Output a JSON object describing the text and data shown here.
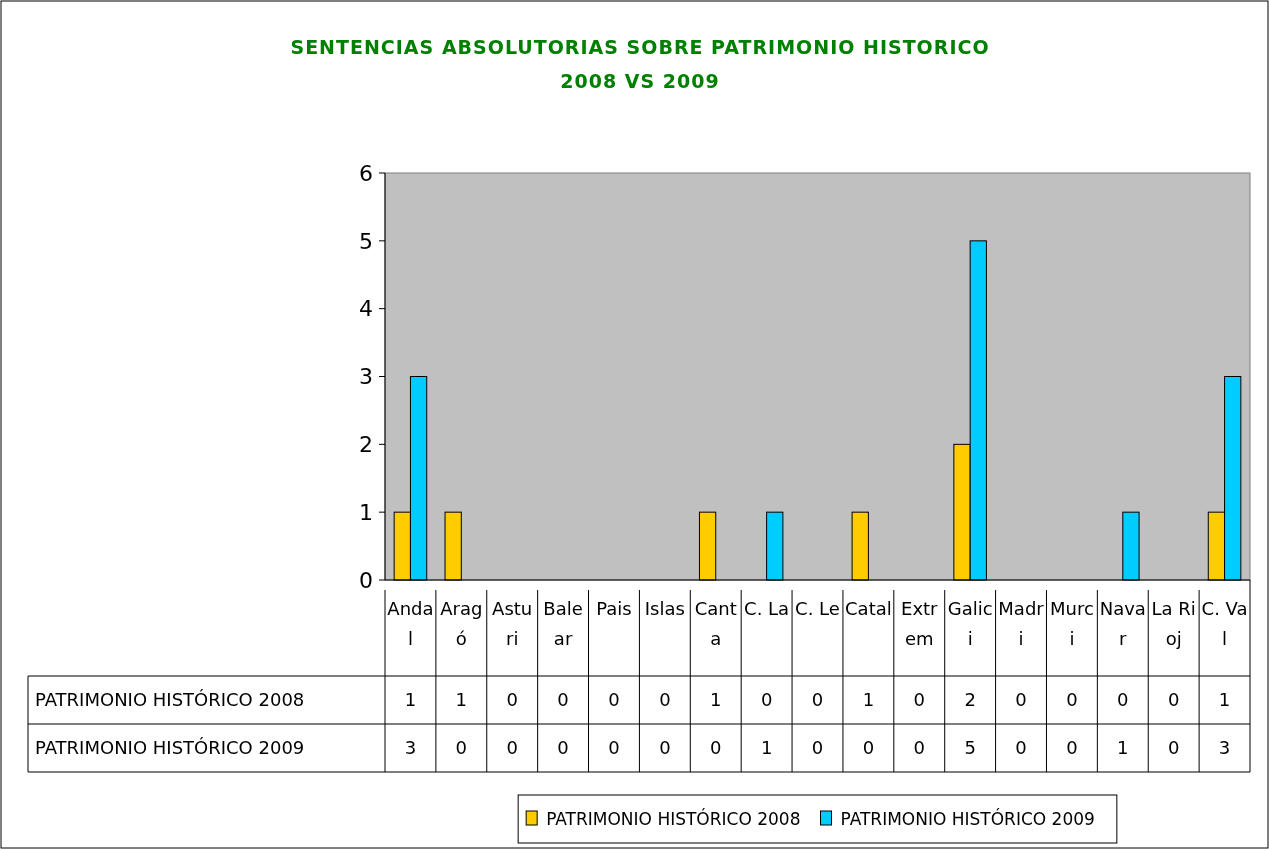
{
  "chart_data": {
    "type": "bar",
    "title": "SENTENCIAS ABSOLUTORIAS SOBRE PATRIMONIO HISTORICO",
    "subtitle": "2008 VS 2009",
    "categories": [
      "Andal",
      "Aragó",
      "Asturi",
      "Balear",
      "Pais",
      "Islas",
      "Canta",
      "C. La",
      "C. Le",
      "Catal",
      "Extrem",
      "Galici",
      "Madri",
      "Murci",
      "Navar",
      "La Rioj",
      "C. Val"
    ],
    "series": [
      {
        "name": "PATRIMONIO HISTÓRICO 2008",
        "color": "#ffcc00",
        "values": [
          1,
          1,
          0,
          0,
          0,
          0,
          1,
          0,
          0,
          1,
          0,
          2,
          0,
          0,
          0,
          0,
          1
        ]
      },
      {
        "name": "PATRIMONIO HISTÓRICO 2009",
        "color": "#00ccff",
        "values": [
          3,
          0,
          0,
          0,
          0,
          0,
          0,
          1,
          0,
          0,
          0,
          5,
          0,
          0,
          1,
          0,
          3
        ]
      }
    ],
    "ylim": [
      0,
      6
    ],
    "yticks": [
      0,
      1,
      2,
      3,
      4,
      5,
      6
    ],
    "data_labels": true,
    "legend": "bottom"
  }
}
